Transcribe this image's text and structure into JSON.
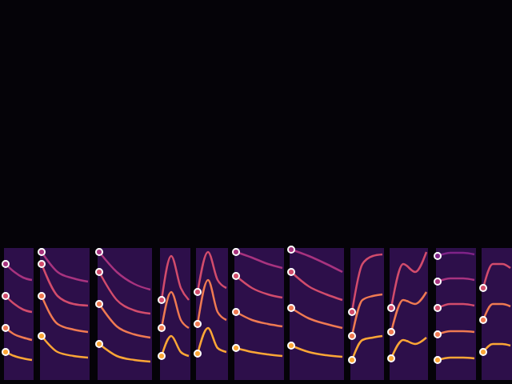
{
  "chart_data": {
    "type": "spectrogram",
    "tick_labels": false,
    "grid": false,
    "xlim": [
      0,
      640
    ],
    "ylim": [
      0,
      480
    ],
    "band": [
      5,
      170
    ],
    "band_color": "#2d0f4a",
    "colors": [
      "#fca636",
      "#ef7a52",
      "#d24c6c",
      "#a8337f",
      "#7f2388"
    ],
    "segments": [
      {
        "span": [
          5,
          42
        ],
        "x": [
          7,
          18,
          29,
          40
        ],
        "harmonics": [
          [
            40,
            35,
            32,
            30
          ],
          [
            70,
            62,
            58,
            55
          ],
          [
            110,
            100,
            93,
            90
          ],
          [
            150,
            140,
            133,
            130
          ]
        ]
      },
      {
        "span": [
          50,
          112
        ],
        "x": [
          52,
          72,
          92,
          110
        ],
        "harmonics": [
          [
            60,
            40,
            35,
            33
          ],
          [
            110,
            75,
            68,
            65
          ],
          [
            150,
            110,
            100,
            98
          ],
          [
            165,
            140,
            132,
            128
          ]
        ]
      },
      {
        "span": [
          122,
          190
        ],
        "x": [
          124,
          146,
          168,
          188
        ],
        "harmonics": [
          [
            50,
            35,
            30,
            28
          ],
          [
            100,
            72,
            62,
            58
          ],
          [
            140,
            105,
            92,
            88
          ],
          [
            165,
            140,
            125,
            118
          ]
        ]
      },
      {
        "span": [
          200,
          238
        ],
        "x": [
          202,
          214,
          226,
          236
        ],
        "harmonics": [
          [
            35,
            60,
            40,
            35
          ],
          [
            70,
            115,
            80,
            70
          ],
          [
            105,
            160,
            120,
            105
          ]
        ]
      },
      {
        "span": [
          245,
          285
        ],
        "x": [
          247,
          260,
          272,
          283
        ],
        "harmonics": [
          [
            38,
            70,
            45,
            40
          ],
          [
            75,
            130,
            90,
            80
          ],
          [
            115,
            165,
            130,
            120
          ]
        ]
      },
      {
        "span": [
          293,
          355
        ],
        "x": [
          295,
          315,
          335,
          353
        ],
        "harmonics": [
          [
            45,
            40,
            37,
            35
          ],
          [
            90,
            80,
            75,
            72
          ],
          [
            135,
            120,
            112,
            108
          ],
          [
            165,
            158,
            150,
            145
          ]
        ]
      },
      {
        "span": [
          362,
          430
        ],
        "x": [
          364,
          386,
          408,
          428
        ],
        "harmonics": [
          [
            48,
            40,
            36,
            34
          ],
          [
            95,
            82,
            75,
            70
          ],
          [
            140,
            122,
            112,
            105
          ],
          [
            168,
            160,
            150,
            140
          ]
        ]
      },
      {
        "span": [
          438,
          480
        ],
        "x": [
          440,
          453,
          466,
          478
        ],
        "harmonics": [
          [
            30,
            55,
            58,
            60
          ],
          [
            60,
            105,
            110,
            112
          ],
          [
            90,
            150,
            160,
            162
          ]
        ]
      },
      {
        "span": [
          487,
          535
        ],
        "x": [
          489,
          504,
          519,
          533
        ],
        "harmonics": [
          [
            32,
            55,
            50,
            58
          ],
          [
            65,
            105,
            100,
            115
          ],
          [
            95,
            150,
            140,
            165
          ]
        ]
      },
      {
        "span": [
          545,
          595
        ],
        "x": [
          547,
          563,
          579,
          593
        ],
        "harmonics": [
          [
            30,
            33,
            33,
            32
          ],
          [
            62,
            66,
            66,
            65
          ],
          [
            95,
            100,
            100,
            98
          ],
          [
            128,
            132,
            132,
            130
          ],
          [
            160,
            164,
            164,
            162
          ]
        ]
      },
      {
        "span": [
          602,
          640
        ],
        "x": [
          604,
          616,
          628,
          638
        ],
        "harmonics": [
          [
            40,
            50,
            50,
            48
          ],
          [
            80,
            100,
            100,
            97
          ],
          [
            120,
            150,
            150,
            145
          ]
        ]
      }
    ]
  }
}
